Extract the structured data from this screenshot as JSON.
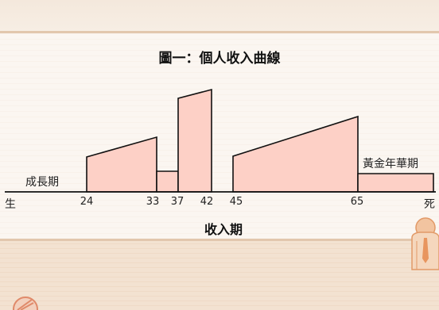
{
  "diagram": {
    "title": "圖一：個人收入曲線",
    "start_label": "生",
    "end_label": "死",
    "growth_label": "成長期",
    "golden_label": "黃金年華期",
    "xlabel": "收入期",
    "ticks": [
      "24",
      "33",
      "37",
      "42",
      "45",
      "65"
    ]
  },
  "colors": {
    "fill": "#fdd0c6",
    "stroke": "#111111",
    "rule": "#e2c7ad"
  }
}
